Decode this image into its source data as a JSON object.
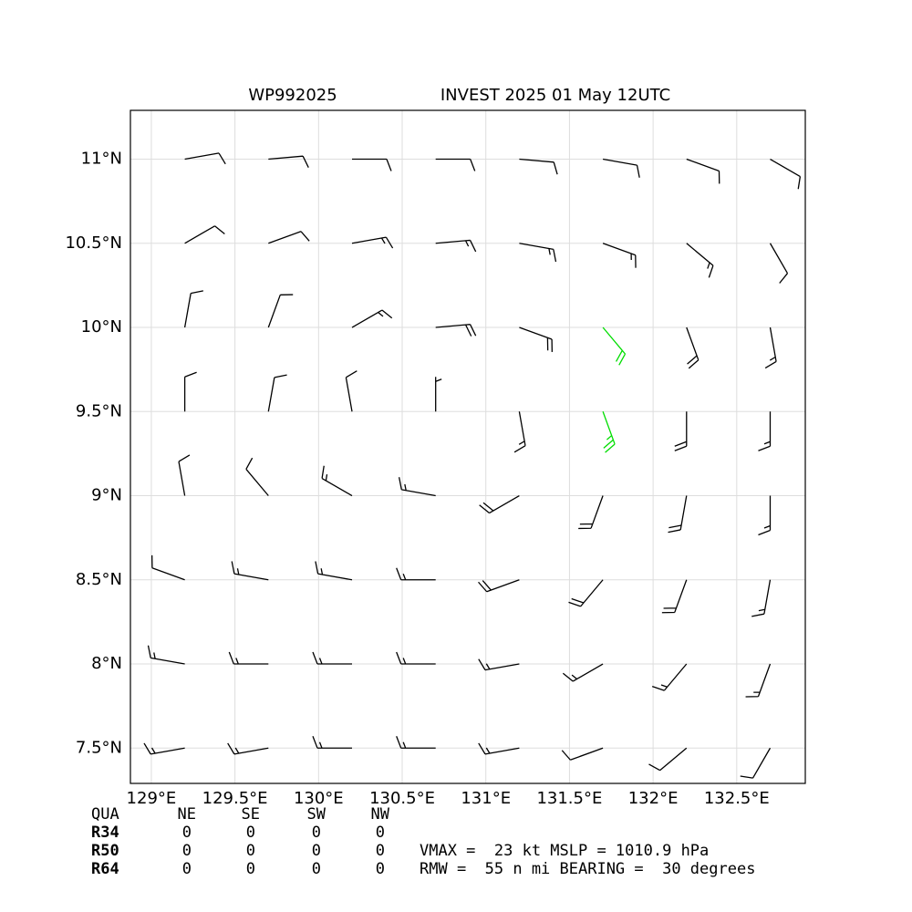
{
  "chart_data": {
    "type": "barbs",
    "title_left": "WP992025",
    "title": "INVEST 2025 01 May 12UTC",
    "xlim": [
      128.875,
      132.91
    ],
    "ylim": [
      7.29,
      11.29
    ],
    "xticks": [
      {
        "value": 129,
        "label": "129°E"
      },
      {
        "value": 129.5,
        "label": "129.5°E"
      },
      {
        "value": 130,
        "label": "130°E"
      },
      {
        "value": 130.5,
        "label": "130.5°E"
      },
      {
        "value": 131,
        "label": "131°E"
      },
      {
        "value": 131.5,
        "label": "131.5°E"
      },
      {
        "value": 132,
        "label": "132°E"
      },
      {
        "value": 132.5,
        "label": "132.5°E"
      }
    ],
    "yticks": [
      {
        "value": 7.5,
        "label": "7.5°N"
      },
      {
        "value": 8,
        "label": "8°N"
      },
      {
        "value": 8.5,
        "label": "8.5°N"
      },
      {
        "value": 9,
        "label": "9°N"
      },
      {
        "value": 9.5,
        "label": "9.5°N"
      },
      {
        "value": 10,
        "label": "10°N"
      },
      {
        "value": 10.5,
        "label": "10.5°N"
      },
      {
        "value": 11,
        "label": "11°N"
      }
    ],
    "grid": true,
    "barbs": {
      "lon": [
        129.2,
        129.7,
        130.2,
        130.7,
        131.2,
        131.7,
        132.2,
        132.7
      ],
      "lat": [
        11.0,
        10.5,
        10.0,
        9.5,
        9.0,
        8.5,
        8.0,
        7.5
      ],
      "direction": [
        [
          80,
          85,
          90,
          90,
          95,
          100,
          110,
          120
        ],
        [
          60,
          70,
          80,
          85,
          100,
          110,
          130,
          150
        ],
        [
          10,
          20,
          60,
          85,
          110,
          140,
          160,
          170
        ],
        [
          360,
          10,
          350,
          0,
          170,
          160,
          180,
          180
        ],
        [
          350,
          320,
          300,
          280,
          240,
          200,
          190,
          180
        ],
        [
          290,
          280,
          280,
          270,
          250,
          220,
          200,
          190
        ],
        [
          280,
          270,
          270,
          270,
          260,
          240,
          220,
          200
        ],
        [
          260,
          260,
          270,
          270,
          260,
          250,
          230,
          210
        ]
      ],
      "speed": [
        [
          10,
          10,
          10,
          10,
          10,
          10,
          10,
          10
        ],
        [
          10,
          10,
          15,
          15,
          15,
          15,
          15,
          10
        ],
        [
          10,
          10,
          15,
          20,
          20,
          20,
          20,
          15
        ],
        [
          10,
          10,
          10,
          5,
          15,
          25,
          20,
          15
        ],
        [
          10,
          10,
          15,
          15,
          20,
          20,
          20,
          15
        ],
        [
          10,
          15,
          15,
          15,
          20,
          20,
          20,
          15
        ],
        [
          15,
          15,
          15,
          15,
          15,
          15,
          15,
          15
        ],
        [
          15,
          15,
          15,
          15,
          15,
          10,
          10,
          10
        ]
      ],
      "colors": [
        [
          "#000000",
          "#000000",
          "#000000",
          "#000000",
          "#000000",
          "#000000",
          "#000000",
          "#000000"
        ],
        [
          "#000000",
          "#000000",
          "#000000",
          "#000000",
          "#000000",
          "#000000",
          "#000000",
          "#000000"
        ],
        [
          "#000000",
          "#000000",
          "#000000",
          "#000000",
          "#000000",
          "#00dd00",
          "#000000",
          "#000000"
        ],
        [
          "#000000",
          "#000000",
          "#000000",
          "#000000",
          "#000000",
          "#00dd00",
          "#000000",
          "#000000"
        ],
        [
          "#000000",
          "#000000",
          "#000000",
          "#000000",
          "#000000",
          "#000000",
          "#000000",
          "#000000"
        ],
        [
          "#000000",
          "#000000",
          "#000000",
          "#000000",
          "#000000",
          "#000000",
          "#000000",
          "#000000"
        ],
        [
          "#000000",
          "#000000",
          "#000000",
          "#000000",
          "#000000",
          "#000000",
          "#000000",
          "#000000"
        ],
        [
          "#000000",
          "#000000",
          "#000000",
          "#000000",
          "#000000",
          "#000000",
          "#000000",
          "#000000"
        ]
      ]
    }
  },
  "radii_table": {
    "header": [
      "QUA",
      "NE",
      "SE",
      "SW",
      "NW"
    ],
    "rows": [
      [
        "R34",
        "0",
        "0",
        "0",
        "0"
      ],
      [
        "R50",
        "0",
        "0",
        "0",
        "0"
      ],
      [
        "R64",
        "0",
        "0",
        "0",
        "0"
      ]
    ]
  },
  "summary": [
    "VMAX =  23 kt MSLP = 1010.9 hPa",
    "RMW =  55 n mi BEARING =  30 degrees"
  ]
}
